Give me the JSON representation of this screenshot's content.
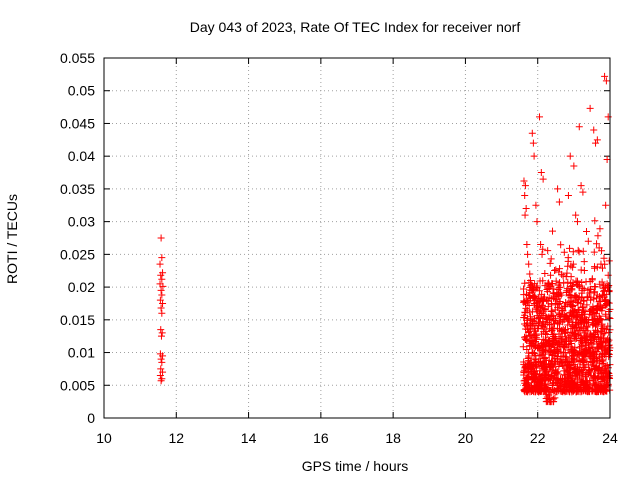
{
  "chart_data": {
    "type": "scatter",
    "title": "Day 043 of 2023, Rate Of TEC Index for receiver norf",
    "xlabel": "GPS time / hours",
    "ylabel": "ROTI / TECUs",
    "xlim": [
      10,
      24
    ],
    "ylim": [
      0,
      0.055
    ],
    "xticks": [
      "10",
      "12",
      "14",
      "16",
      "18",
      "20",
      "22",
      "24"
    ],
    "yticks": [
      "0",
      "0.005",
      "0.01",
      "0.015",
      "0.02",
      "0.025",
      "0.03",
      "0.035",
      "0.04",
      "0.045",
      "0.05",
      "0.055"
    ],
    "grid": true,
    "marker": "+",
    "color": "#ff0000",
    "series": [
      {
        "name": "ROTI",
        "points": [
          [
            11.58,
            0.0275
          ],
          [
            11.6,
            0.0245
          ],
          [
            11.55,
            0.0235
          ],
          [
            11.62,
            0.0222
          ],
          [
            11.57,
            0.0218
          ],
          [
            11.6,
            0.0212
          ],
          [
            11.55,
            0.0205
          ],
          [
            11.63,
            0.0201
          ],
          [
            11.58,
            0.0195
          ],
          [
            11.6,
            0.0188
          ],
          [
            11.56,
            0.018
          ],
          [
            11.62,
            0.0175
          ],
          [
            11.58,
            0.0168
          ],
          [
            11.6,
            0.016
          ],
          [
            11.57,
            0.0135
          ],
          [
            11.61,
            0.013
          ],
          [
            11.59,
            0.0125
          ],
          [
            11.56,
            0.0098
          ],
          [
            11.62,
            0.0095
          ],
          [
            11.58,
            0.009
          ],
          [
            11.6,
            0.0085
          ],
          [
            11.57,
            0.0075
          ],
          [
            11.62,
            0.007
          ],
          [
            11.56,
            0.0065
          ],
          [
            11.6,
            0.006
          ],
          [
            11.58,
            0.0057
          ],
          [
            21.62,
            0.0362
          ],
          [
            21.66,
            0.0355
          ],
          [
            21.64,
            0.034
          ],
          [
            21.68,
            0.032
          ],
          [
            21.65,
            0.031
          ],
          [
            21.7,
            0.0265
          ],
          [
            21.72,
            0.025
          ],
          [
            21.75,
            0.0235
          ],
          [
            21.78,
            0.022
          ],
          [
            21.8,
            0.021
          ],
          [
            21.85,
            0.0435
          ],
          [
            21.88,
            0.042
          ],
          [
            21.9,
            0.04
          ],
          [
            21.95,
            0.0325
          ],
          [
            21.98,
            0.03
          ],
          [
            22.05,
            0.046
          ],
          [
            22.1,
            0.0375
          ],
          [
            22.15,
            0.0365
          ],
          [
            22.08,
            0.0265
          ],
          [
            22.12,
            0.025
          ],
          [
            22.55,
            0.035
          ],
          [
            22.6,
            0.033
          ],
          [
            22.85,
            0.034
          ],
          [
            22.9,
            0.04
          ],
          [
            23.0,
            0.0385
          ],
          [
            23.05,
            0.031
          ],
          [
            23.1,
            0.03
          ],
          [
            23.15,
            0.0445
          ],
          [
            23.2,
            0.0355
          ],
          [
            23.25,
            0.0345
          ],
          [
            23.35,
            0.0285
          ],
          [
            23.4,
            0.027
          ],
          [
            23.45,
            0.0473
          ],
          [
            23.55,
            0.044
          ],
          [
            23.6,
            0.042
          ],
          [
            23.65,
            0.0425
          ],
          [
            23.7,
            0.026
          ],
          [
            23.75,
            0.0235
          ],
          [
            23.85,
            0.0522
          ],
          [
            23.9,
            0.0515
          ],
          [
            23.95,
            0.046
          ],
          [
            23.92,
            0.0395
          ],
          [
            23.88,
            0.0325
          ],
          [
            23.98,
            0.024
          ],
          [
            23.95,
            0.0218
          ],
          [
            23.92,
            0.0205
          ],
          [
            23.85,
            0.0195
          ]
        ]
      }
    ]
  }
}
